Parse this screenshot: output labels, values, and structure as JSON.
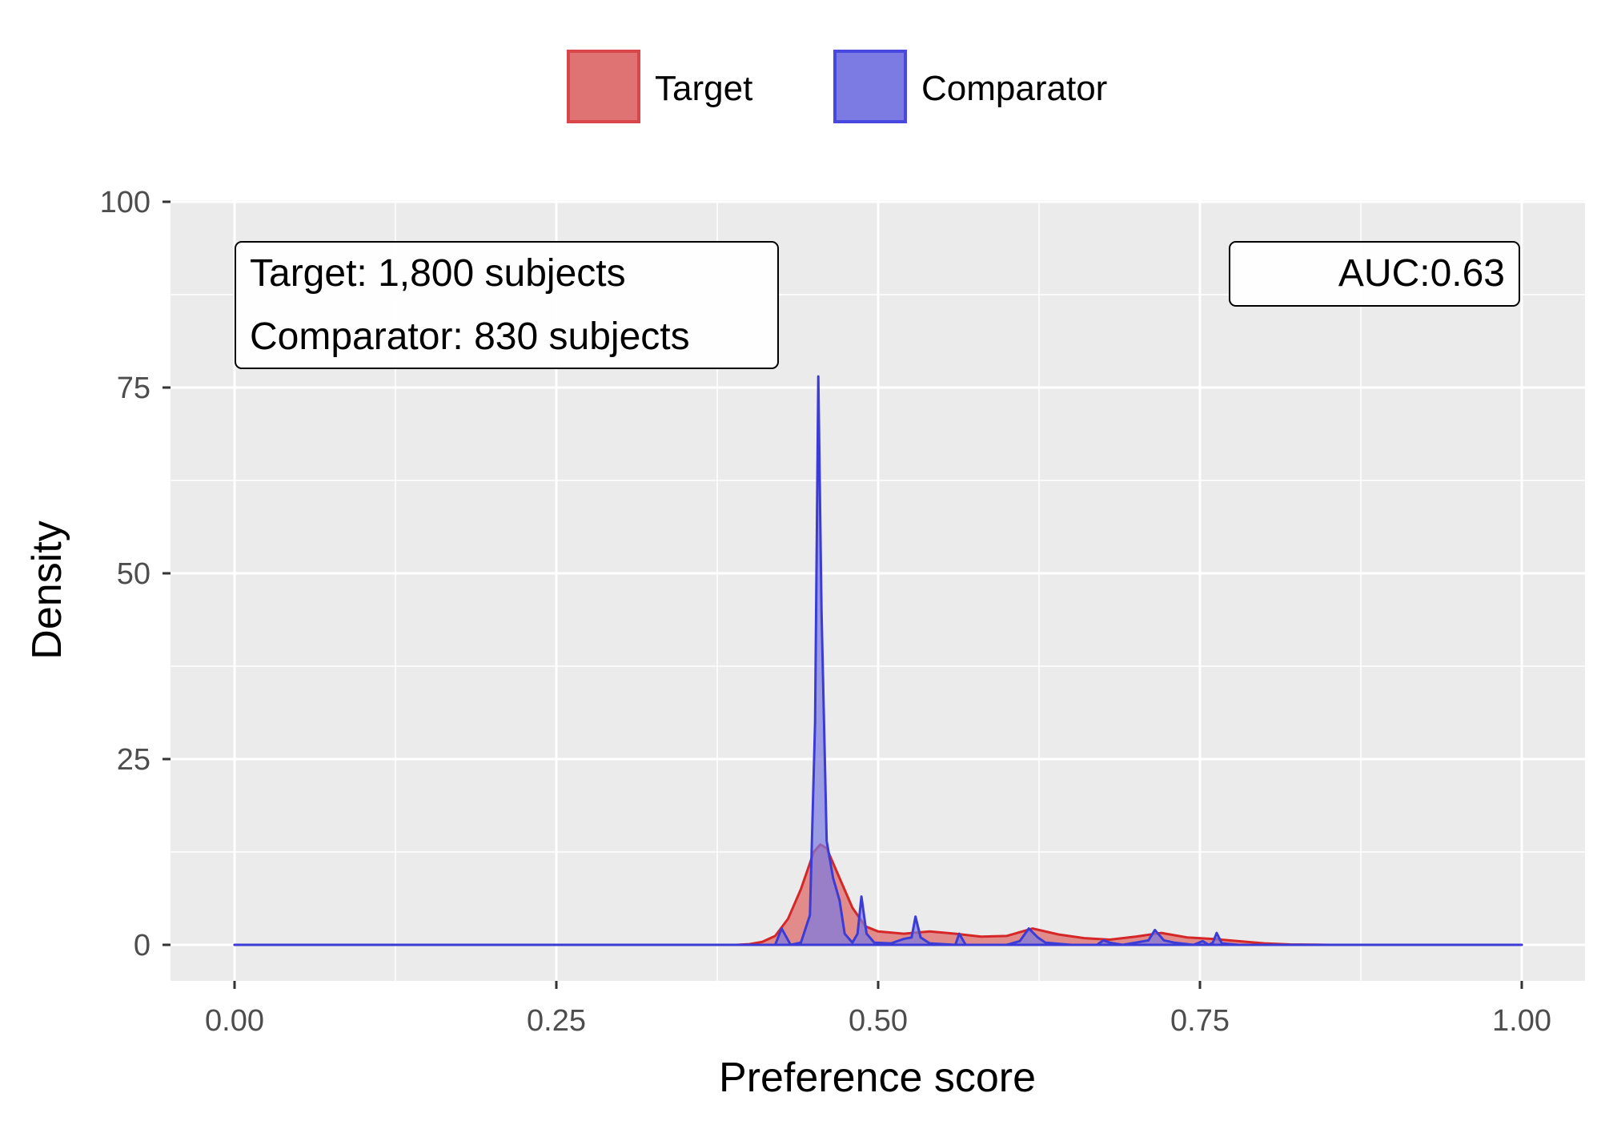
{
  "chart_data": {
    "type": "area",
    "xlabel": "Preference score",
    "ylabel": "Density",
    "xlim": [
      0,
      1
    ],
    "ylim": [
      -5,
      100
    ],
    "x_ticks": [
      0,
      0.25,
      0.5,
      0.75,
      1
    ],
    "x_tick_labels": [
      "0.00",
      "0.25",
      "0.50",
      "0.75",
      "1.00"
    ],
    "y_ticks": [
      0,
      25,
      50,
      75,
      100
    ],
    "y_tick_labels": [
      "0",
      "25",
      "50",
      "75",
      "100"
    ],
    "grid": true,
    "legend_position": "top",
    "series": [
      {
        "name": "Target",
        "color": "#d62728",
        "fill": "#df7373",
        "points": [
          [
            0,
            0
          ],
          [
            0.39,
            0
          ],
          [
            0.4,
            0.1
          ],
          [
            0.41,
            0.4
          ],
          [
            0.42,
            1.2
          ],
          [
            0.43,
            3.5
          ],
          [
            0.44,
            7.5
          ],
          [
            0.45,
            12.5
          ],
          [
            0.455,
            13.5
          ],
          [
            0.46,
            13
          ],
          [
            0.47,
            9
          ],
          [
            0.48,
            5
          ],
          [
            0.49,
            2.5
          ],
          [
            0.5,
            1.8
          ],
          [
            0.52,
            1.5
          ],
          [
            0.54,
            1.8
          ],
          [
            0.56,
            1.5
          ],
          [
            0.58,
            1.1
          ],
          [
            0.6,
            1.2
          ],
          [
            0.62,
            2.2
          ],
          [
            0.64,
            1.4
          ],
          [
            0.66,
            0.9
          ],
          [
            0.68,
            0.7
          ],
          [
            0.7,
            1.1
          ],
          [
            0.72,
            1.6
          ],
          [
            0.74,
            1.0
          ],
          [
            0.76,
            0.8
          ],
          [
            0.78,
            0.5
          ],
          [
            0.8,
            0.2
          ],
          [
            0.82,
            0.05
          ],
          [
            0.85,
            0
          ],
          [
            1,
            0
          ]
        ]
      },
      {
        "name": "Comparator",
        "color": "#3b3bd6",
        "fill": "#7b7be3",
        "points": [
          [
            0,
            0
          ],
          [
            0.42,
            0
          ],
          [
            0.425,
            2.2
          ],
          [
            0.432,
            0
          ],
          [
            0.44,
            0.3
          ],
          [
            0.447,
            4
          ],
          [
            0.451,
            30
          ],
          [
            0.4535,
            76.5
          ],
          [
            0.456,
            45
          ],
          [
            0.46,
            14
          ],
          [
            0.465,
            9
          ],
          [
            0.47,
            6
          ],
          [
            0.474,
            1.5
          ],
          [
            0.48,
            0.3
          ],
          [
            0.484,
            1.5
          ],
          [
            0.487,
            6.5
          ],
          [
            0.491,
            1.5
          ],
          [
            0.497,
            0.3
          ],
          [
            0.51,
            0.2
          ],
          [
            0.52,
            0.8
          ],
          [
            0.526,
            1
          ],
          [
            0.529,
            3.8
          ],
          [
            0.533,
            1
          ],
          [
            0.54,
            0.2
          ],
          [
            0.56,
            0
          ],
          [
            0.563,
            1.5
          ],
          [
            0.568,
            0
          ],
          [
            0.6,
            0
          ],
          [
            0.61,
            0.5
          ],
          [
            0.617,
            2.2
          ],
          [
            0.624,
            1.0
          ],
          [
            0.63,
            0.3
          ],
          [
            0.65,
            0
          ],
          [
            0.67,
            0
          ],
          [
            0.675,
            0.6
          ],
          [
            0.68,
            0.3
          ],
          [
            0.69,
            0
          ],
          [
            0.71,
            0.6
          ],
          [
            0.715,
            2
          ],
          [
            0.722,
            0.6
          ],
          [
            0.73,
            0.3
          ],
          [
            0.745,
            0
          ],
          [
            0.752,
            0.5
          ],
          [
            0.757,
            0
          ],
          [
            0.76,
            0.3
          ],
          [
            0.763,
            1.6
          ],
          [
            0.767,
            0.2
          ],
          [
            0.78,
            0
          ],
          [
            1,
            0
          ]
        ]
      }
    ],
    "annotations": [
      {
        "id": "counts",
        "lines": [
          "Target: 1,800 subjects",
          "Comparator: 830 subjects"
        ]
      },
      {
        "id": "auc",
        "lines": [
          "AUC:0.63"
        ]
      }
    ]
  }
}
